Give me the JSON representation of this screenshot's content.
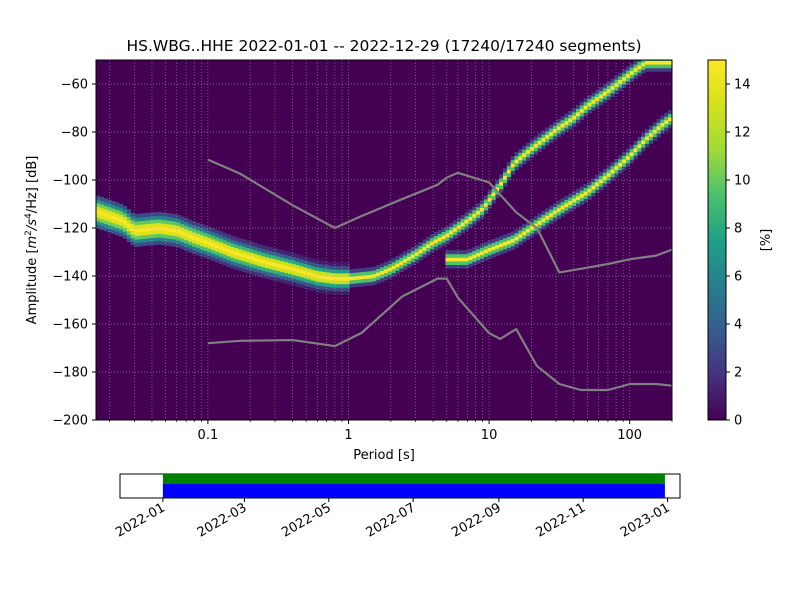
{
  "title": "HS.WBG..HHE   2022-01-01 -- 2022-12-29  (17240/17240 segments)",
  "chart_data": {
    "type": "heatmap",
    "title": "HS.WBG..HHE   2022-01-01 -- 2022-12-29  (17240/17240 segments)",
    "xlabel": "Period [s]",
    "ylabel": "Amplitude [m²/s⁴/Hz] [dB]",
    "ylabel_parts": {
      "pre": "Amplitude [",
      "m": "m",
      "sup2": "2",
      "s": "/s",
      "sup4": "4",
      "post": "/Hz] [dB]"
    },
    "x_scale": "log",
    "xlim": [
      0.016,
      200
    ],
    "ylim": [
      -200,
      -50
    ],
    "x_ticks": [
      {
        "value": 0.1,
        "label": "0.1"
      },
      {
        "value": 1,
        "label": "1"
      },
      {
        "value": 10,
        "label": "10"
      },
      {
        "value": 100,
        "label": "100"
      }
    ],
    "y_ticks": [
      {
        "value": -60,
        "label": "−60"
      },
      {
        "value": -80,
        "label": "−80"
      },
      {
        "value": -100,
        "label": "−100"
      },
      {
        "value": -120,
        "label": "−120"
      },
      {
        "value": -140,
        "label": "−140"
      },
      {
        "value": -160,
        "label": "−160"
      },
      {
        "value": -180,
        "label": "−180"
      },
      {
        "value": -200,
        "label": "−200"
      }
    ],
    "grid": true,
    "colormap": "viridis",
    "colorbar": {
      "label": "[%]",
      "range": [
        0,
        15
      ],
      "ticks": [
        {
          "value": 0,
          "label": "0"
        },
        {
          "value": 2,
          "label": "2"
        },
        {
          "value": 4,
          "label": "4"
        },
        {
          "value": 6,
          "label": "6"
        },
        {
          "value": 8,
          "label": "8"
        },
        {
          "value": 10,
          "label": "10"
        },
        {
          "value": 12,
          "label": "12"
        },
        {
          "value": 14,
          "label": "14"
        }
      ]
    },
    "density_ridges": [
      {
        "points": [
          [
            0.016,
            -113
          ],
          [
            0.025,
            -117
          ],
          [
            0.03,
            -121
          ],
          [
            0.045,
            -120
          ],
          [
            0.06,
            -121
          ],
          [
            0.08,
            -124
          ],
          [
            0.1,
            -126
          ],
          [
            0.15,
            -130
          ],
          [
            0.25,
            -134
          ],
          [
            0.4,
            -137
          ],
          [
            0.6,
            -140
          ],
          [
            0.8,
            -141
          ],
          [
            1.0,
            -141
          ],
          [
            1.5,
            -140
          ],
          [
            2.0,
            -137
          ],
          [
            3.0,
            -131
          ],
          [
            4.0,
            -126
          ],
          [
            5.0,
            -123
          ],
          [
            7.0,
            -117
          ],
          [
            9.0,
            -112
          ],
          [
            12.0,
            -102
          ],
          [
            15.0,
            -93
          ],
          [
            20.0,
            -87
          ],
          [
            30.0,
            -79
          ],
          [
            40.0,
            -74
          ],
          [
            50.0,
            -69
          ],
          [
            70.0,
            -63
          ],
          [
            90.0,
            -58
          ],
          [
            110.0,
            -54
          ],
          [
            130.0,
            -51
          ],
          [
            200.0,
            -51
          ]
        ],
        "peak": 15
      },
      {
        "points": [
          [
            5.0,
            -133
          ],
          [
            7.0,
            -133
          ],
          [
            10.0,
            -129
          ],
          [
            15.0,
            -125
          ],
          [
            20.0,
            -120
          ],
          [
            30.0,
            -113
          ],
          [
            50.0,
            -105
          ],
          [
            70.0,
            -98
          ],
          [
            100.0,
            -90
          ],
          [
            130.0,
            -83
          ],
          [
            170.0,
            -77
          ],
          [
            200.0,
            -74
          ]
        ],
        "peak": 15
      }
    ],
    "noise_models": [
      {
        "name": "upper",
        "points": [
          [
            0.1,
            -91.5
          ],
          [
            0.17,
            -97.4
          ],
          [
            0.4,
            -110.5
          ],
          [
            0.8,
            -120
          ],
          [
            1.24,
            -115
          ],
          [
            2.4,
            -108
          ],
          [
            4.3,
            -102
          ],
          [
            5.0,
            -99
          ],
          [
            6.0,
            -97
          ],
          [
            10.0,
            -101
          ],
          [
            15.6,
            -113.5
          ],
          [
            21.9,
            -120
          ],
          [
            31.6,
            -138.5
          ],
          [
            45.0,
            -137
          ],
          [
            70.0,
            -135
          ],
          [
            101.0,
            -133
          ],
          [
            154.0,
            -131.5
          ],
          [
            200.0,
            -129
          ]
        ]
      },
      {
        "name": "lower",
        "points": [
          [
            0.1,
            -168
          ],
          [
            0.17,
            -167
          ],
          [
            0.4,
            -166.7
          ],
          [
            0.8,
            -169.2
          ],
          [
            1.24,
            -163.7
          ],
          [
            2.4,
            -148.6
          ],
          [
            4.3,
            -141.1
          ],
          [
            5.0,
            -141.1
          ],
          [
            6.0,
            -149
          ],
          [
            10.0,
            -163.8
          ],
          [
            12.0,
            -166.2
          ],
          [
            15.6,
            -162.1
          ],
          [
            21.9,
            -177.5
          ],
          [
            31.6,
            -185
          ],
          [
            45.0,
            -187.5
          ],
          [
            70.0,
            -187.5
          ],
          [
            101.0,
            -185
          ],
          [
            154.0,
            -185
          ],
          [
            200.0,
            -185.7
          ]
        ]
      }
    ],
    "timeline": {
      "start": "2022-01-01",
      "end": "2023-01-01",
      "data_start": "2022-01-01",
      "data_end": "2022-12-29",
      "date_ticks": [
        "2022-01",
        "2022-03",
        "2022-05",
        "2022-07",
        "2022-09",
        "2022-11",
        "2023-01"
      ],
      "colors": {
        "data": "#0000ff",
        "segments": "#008000"
      }
    }
  }
}
